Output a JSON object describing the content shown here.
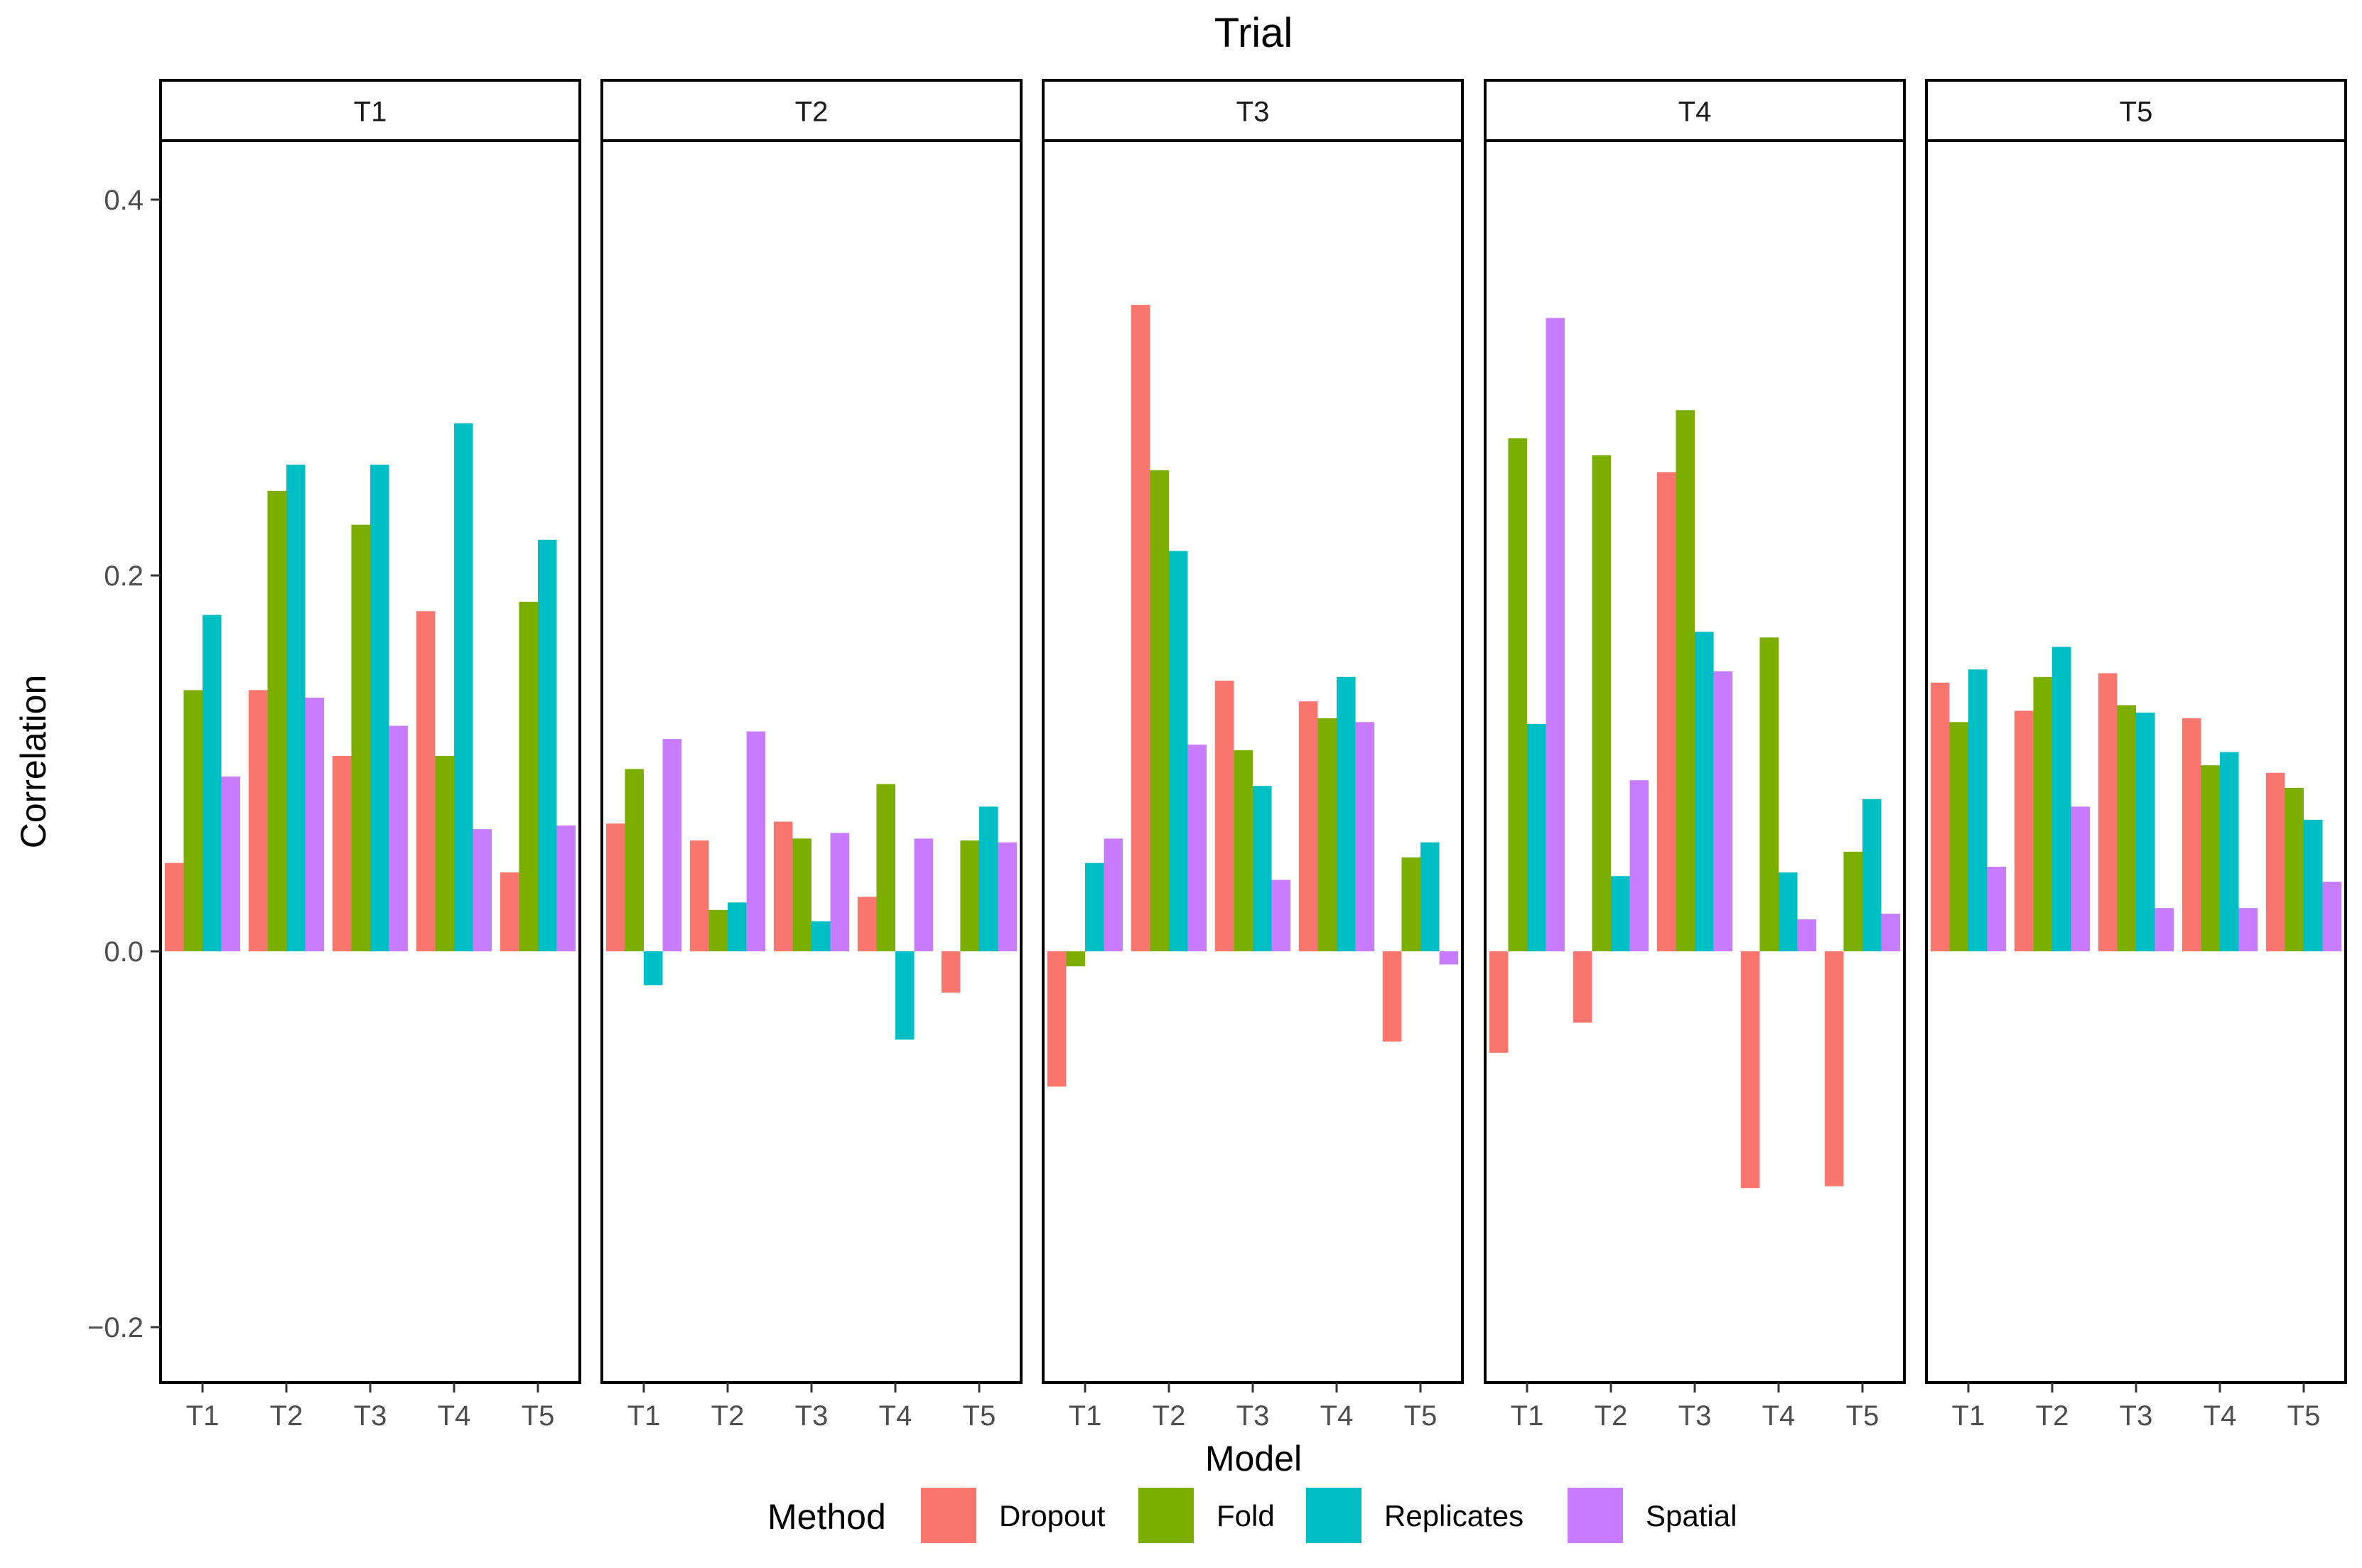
{
  "chart_data": {
    "type": "bar",
    "title": "Trial",
    "xlabel": "Model",
    "ylabel": "Correlation",
    "ylim": [
      -0.23,
      0.43
    ],
    "yticks": [
      -0.2,
      0.0,
      0.2,
      0.4
    ],
    "ytick_labels": [
      "−0.2",
      "0.0",
      "0.2",
      "0.4"
    ],
    "grid": false,
    "legend": {
      "title": "Method",
      "position": "bottom",
      "entries": [
        "Dropout",
        "Fold",
        "Replicates",
        "Spatial"
      ]
    },
    "colors": {
      "Dropout": "#F8766D",
      "Fold": "#7CAE00",
      "Replicates": "#00BFC4",
      "Spatial": "#C77CFF"
    },
    "categories": [
      "T1",
      "T2",
      "T3",
      "T4",
      "T5"
    ],
    "panels": [
      {
        "label": "T1",
        "series": [
          {
            "name": "Dropout",
            "values": [
              0.047,
              0.139,
              0.104,
              0.181,
              0.042
            ]
          },
          {
            "name": "Fold",
            "values": [
              0.139,
              0.245,
              0.227,
              0.104,
              0.186
            ]
          },
          {
            "name": "Replicates",
            "values": [
              0.179,
              0.259,
              0.259,
              0.281,
              0.219
            ]
          },
          {
            "name": "Spatial",
            "values": [
              0.093,
              0.135,
              0.12,
              0.065,
              0.067
            ]
          }
        ]
      },
      {
        "label": "T2",
        "series": [
          {
            "name": "Dropout",
            "values": [
              0.068,
              0.059,
              0.069,
              0.029,
              -0.022
            ]
          },
          {
            "name": "Fold",
            "values": [
              0.097,
              0.022,
              0.06,
              0.089,
              0.059
            ]
          },
          {
            "name": "Replicates",
            "values": [
              -0.018,
              0.026,
              0.016,
              -0.047,
              0.077
            ]
          },
          {
            "name": "Spatial",
            "values": [
              0.113,
              0.117,
              0.063,
              0.06,
              0.058
            ]
          }
        ]
      },
      {
        "label": "T3",
        "series": [
          {
            "name": "Dropout",
            "values": [
              -0.072,
              0.344,
              0.144,
              0.133,
              -0.048
            ]
          },
          {
            "name": "Fold",
            "values": [
              -0.008,
              0.256,
              0.107,
              0.124,
              0.05
            ]
          },
          {
            "name": "Replicates",
            "values": [
              0.047,
              0.213,
              0.088,
              0.146,
              0.058
            ]
          },
          {
            "name": "Spatial",
            "values": [
              0.06,
              0.11,
              0.038,
              0.122,
              -0.007
            ]
          }
        ]
      },
      {
        "label": "T4",
        "series": [
          {
            "name": "Dropout",
            "values": [
              -0.054,
              -0.038,
              0.255,
              -0.126,
              -0.125
            ]
          },
          {
            "name": "Fold",
            "values": [
              0.273,
              0.264,
              0.288,
              0.167,
              0.053
            ]
          },
          {
            "name": "Replicates",
            "values": [
              0.121,
              0.04,
              0.17,
              0.042,
              0.081
            ]
          },
          {
            "name": "Spatial",
            "values": [
              0.337,
              0.091,
              0.149,
              0.017,
              0.02
            ]
          }
        ]
      },
      {
        "label": "T5",
        "series": [
          {
            "name": "Dropout",
            "values": [
              0.143,
              0.128,
              0.148,
              0.124,
              0.095
            ]
          },
          {
            "name": "Fold",
            "values": [
              0.122,
              0.146,
              0.131,
              0.099,
              0.087
            ]
          },
          {
            "name": "Replicates",
            "values": [
              0.15,
              0.162,
              0.127,
              0.106,
              0.07
            ]
          },
          {
            "name": "Spatial",
            "values": [
              0.045,
              0.077,
              0.023,
              0.023,
              0.037
            ]
          }
        ]
      }
    ]
  }
}
